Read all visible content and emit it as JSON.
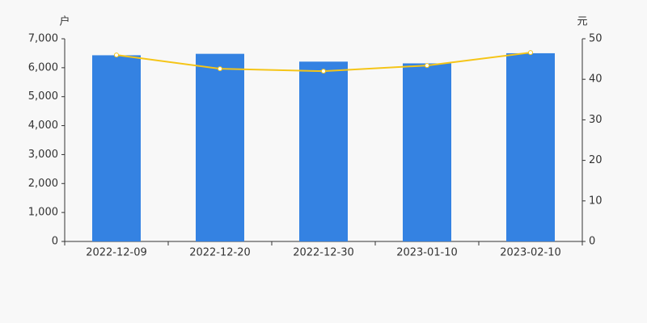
{
  "chart_data": {
    "type": "bar",
    "ylabel": "户",
    "y2label": "元",
    "categories": [
      "2022-12-09",
      "2022-12-20",
      "2022-12-30",
      "2023-01-10",
      "2023-02-10"
    ],
    "series": [
      {
        "type": "bar",
        "color": "#3482e2",
        "values": [
          6430,
          6480,
          6210,
          6150,
          6500
        ]
      },
      {
        "type": "line",
        "axis": "y2",
        "color": "#f5c518",
        "values": [
          46.0,
          42.6,
          42.0,
          43.4,
          46.6
        ]
      }
    ],
    "ylim": [
      0,
      7000
    ],
    "yticks": [
      0,
      {
        "value": 1000,
        "label": "1,000"
      },
      {
        "value": 2000,
        "label": "2,000"
      },
      {
        "value": 3000,
        "label": "3,000"
      },
      {
        "value": 4000,
        "label": "4,000"
      },
      {
        "value": 5000,
        "label": "5,000"
      },
      {
        "value": 6000,
        "label": "6,000"
      },
      {
        "value": 7000,
        "label": "7,000"
      }
    ],
    "y2lim": [
      0,
      50
    ],
    "y2ticks": [
      0,
      10,
      20,
      30,
      40,
      50
    ]
  }
}
